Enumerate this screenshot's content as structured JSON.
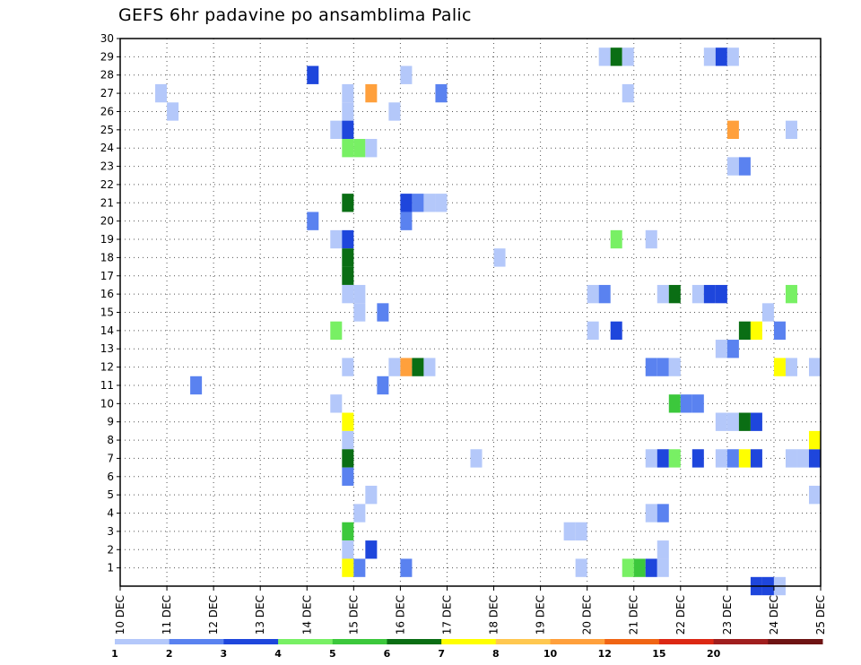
{
  "title": "GEFS 6hr padavine po ansamblima Palic",
  "chart_data": {
    "type": "heatmap",
    "title": "GEFS 6hr padavine po ansamblima Palic",
    "x_tick_labels": [
      "10 DEC",
      "11 DEC",
      "12 DEC",
      "13 DEC",
      "14 DEC",
      "15 DEC",
      "16 DEC",
      "17 DEC",
      "18 DEC",
      "19 DEC",
      "20 DEC",
      "21 DEC",
      "22 DEC",
      "23 DEC",
      "24 DEC",
      "25 DEC"
    ],
    "y_tick_labels": [
      1,
      2,
      3,
      4,
      5,
      6,
      7,
      8,
      9,
      10,
      11,
      12,
      13,
      14,
      15,
      16,
      17,
      18,
      19,
      20,
      21,
      22,
      23,
      24,
      25,
      26,
      27,
      28,
      29,
      30
    ],
    "x_range_days": [
      10,
      25
    ],
    "y_range": [
      0,
      30
    ],
    "time_step_hours": 6,
    "grid": true,
    "colorbar": {
      "levels": [
        1,
        2,
        3,
        4,
        5,
        6,
        7,
        8,
        10,
        12,
        15,
        20
      ],
      "colors": [
        "#b4c8fa",
        "#5a82f0",
        "#1e46dc",
        "#78f064",
        "#3cc83c",
        "#0a6e14",
        "#ffff00",
        "#ffc850",
        "#ffa03c",
        "#f06414",
        "#dc2814",
        "#a01e1e",
        "#6e1414"
      ]
    },
    "cells": [
      {
        "x": "14.00",
        "y": 28,
        "c": 2
      },
      {
        "x": "14.75",
        "y": 27,
        "c": 0
      },
      {
        "x": "14.75",
        "y": 26,
        "c": 0
      },
      {
        "x": "14.50",
        "y": 25,
        "c": 0
      },
      {
        "x": "14.75",
        "y": 25,
        "c": 2
      },
      {
        "x": "14.75",
        "y": 24,
        "c": 3
      },
      {
        "x": "15.00",
        "y": 24,
        "c": 3
      },
      {
        "x": "15.25",
        "y": 24,
        "c": 0
      },
      {
        "x": "14.00",
        "y": 20,
        "c": 1
      },
      {
        "x": "14.75",
        "y": 21,
        "c": 5
      },
      {
        "x": "14.50",
        "y": 19,
        "c": 0
      },
      {
        "x": "14.75",
        "y": 19,
        "c": 2
      },
      {
        "x": "14.75",
        "y": 18,
        "c": 5
      },
      {
        "x": "14.75",
        "y": 17,
        "c": 5
      },
      {
        "x": "14.75",
        "y": 16,
        "c": 0
      },
      {
        "x": "15.00",
        "y": 16,
        "c": 0
      },
      {
        "x": "15.00",
        "y": 15,
        "c": 0
      },
      {
        "x": "14.50",
        "y": 14,
        "c": 3
      },
      {
        "x": "14.75",
        "y": 12,
        "c": 0
      },
      {
        "x": "14.50",
        "y": 10,
        "c": 0
      },
      {
        "x": "14.75",
        "y": 9,
        "c": 6
      },
      {
        "x": "14.75",
        "y": 8,
        "c": 0
      },
      {
        "x": "14.75",
        "y": 7,
        "c": 5
      },
      {
        "x": "14.75",
        "y": 6,
        "c": 1
      },
      {
        "x": "14.75",
        "y": 3,
        "c": 4
      },
      {
        "x": "14.75",
        "y": 2,
        "c": 0
      },
      {
        "x": "14.75",
        "y": 1,
        "c": 6
      },
      {
        "x": "15.00",
        "y": 1,
        "c": 1
      },
      {
        "x": "15.25",
        "y": 2,
        "c": 2
      },
      {
        "x": "15.00",
        "y": 4,
        "c": 0
      },
      {
        "x": "15.25",
        "y": 5,
        "c": 0
      },
      {
        "x": "15.25",
        "y": 27,
        "c": 8
      },
      {
        "x": "15.75",
        "y": 26,
        "c": 0
      },
      {
        "x": "15.50",
        "y": 15,
        "c": 1
      },
      {
        "x": "15.50",
        "y": 11,
        "c": 1
      },
      {
        "x": "15.75",
        "y": 12,
        "c": 0
      },
      {
        "x": "16.00",
        "y": 12,
        "c": 8
      },
      {
        "x": "16.25",
        "y": 12,
        "c": 5
      },
      {
        "x": "16.50",
        "y": 12,
        "c": 0
      },
      {
        "x": "16.00",
        "y": 21,
        "c": 2
      },
      {
        "x": "16.00",
        "y": 20,
        "c": 1
      },
      {
        "x": "16.25",
        "y": 21,
        "c": 1
      },
      {
        "x": "16.50",
        "y": 21,
        "c": 0
      },
      {
        "x": "16.75",
        "y": 21,
        "c": 0
      },
      {
        "x": "16.00",
        "y": 28,
        "c": 0
      },
      {
        "x": "16.00",
        "y": 1,
        "c": 1
      },
      {
        "x": "16.75",
        "y": 27,
        "c": 1
      },
      {
        "x": "10.75",
        "y": 27,
        "c": 0
      },
      {
        "x": "11.00",
        "y": 26,
        "c": 0
      },
      {
        "x": "11.50",
        "y": 11,
        "c": 1
      },
      {
        "x": "17.50",
        "y": 7,
        "c": 0
      },
      {
        "x": "18.00",
        "y": 18,
        "c": 0
      },
      {
        "x": "19.50",
        "y": 3,
        "c": 0
      },
      {
        "x": "19.75",
        "y": 3,
        "c": 0
      },
      {
        "x": "19.75",
        "y": 1,
        "c": 0
      },
      {
        "x": "20.00",
        "y": 16,
        "c": 0
      },
      {
        "x": "20.00",
        "y": 14,
        "c": 0
      },
      {
        "x": "20.25",
        "y": 16,
        "c": 1
      },
      {
        "x": "20.25",
        "y": 29,
        "c": 0
      },
      {
        "x": "20.50",
        "y": 29,
        "c": 5
      },
      {
        "x": "20.75",
        "y": 29,
        "c": 0
      },
      {
        "x": "20.50",
        "y": 19,
        "c": 3
      },
      {
        "x": "20.50",
        "y": 14,
        "c": 2
      },
      {
        "x": "20.75",
        "y": 27,
        "c": 0
      },
      {
        "x": "20.75",
        "y": 1,
        "c": 3
      },
      {
        "x": "21.00",
        "y": 1,
        "c": 4
      },
      {
        "x": "21.25",
        "y": 1,
        "c": 2
      },
      {
        "x": "21.50",
        "y": 1,
        "c": 0
      },
      {
        "x": "21.25",
        "y": 19,
        "c": 0
      },
      {
        "x": "21.25",
        "y": 12,
        "c": 1
      },
      {
        "x": "21.50",
        "y": 12,
        "c": 1
      },
      {
        "x": "21.75",
        "y": 12,
        "c": 0
      },
      {
        "x": "21.25",
        "y": 7,
        "c": 0
      },
      {
        "x": "21.50",
        "y": 7,
        "c": 2
      },
      {
        "x": "21.75",
        "y": 7,
        "c": 3
      },
      {
        "x": "21.25",
        "y": 4,
        "c": 0
      },
      {
        "x": "21.50",
        "y": 4,
        "c": 1
      },
      {
        "x": "21.50",
        "y": 2,
        "c": 0
      },
      {
        "x": "21.50",
        "y": 16,
        "c": 0
      },
      {
        "x": "21.75",
        "y": 16,
        "c": 5
      },
      {
        "x": "21.75",
        "y": 10,
        "c": 4
      },
      {
        "x": "22.00",
        "y": 10,
        "c": 1
      },
      {
        "x": "22.25",
        "y": 10,
        "c": 1
      },
      {
        "x": "22.25",
        "y": 16,
        "c": 0
      },
      {
        "x": "22.50",
        "y": 16,
        "c": 2
      },
      {
        "x": "22.75",
        "y": 16,
        "c": 2
      },
      {
        "x": "22.25",
        "y": 7,
        "c": 2
      },
      {
        "x": "22.50",
        "y": 29,
        "c": 0
      },
      {
        "x": "22.75",
        "y": 29,
        "c": 2
      },
      {
        "x": "23.00",
        "y": 29,
        "c": 0
      },
      {
        "x": "22.75",
        "y": 13,
        "c": 0
      },
      {
        "x": "23.00",
        "y": 13,
        "c": 1
      },
      {
        "x": "22.75",
        "y": 9,
        "c": 0
      },
      {
        "x": "23.00",
        "y": 9,
        "c": 0
      },
      {
        "x": "23.25",
        "y": 9,
        "c": 5
      },
      {
        "x": "23.50",
        "y": 9,
        "c": 2
      },
      {
        "x": "22.75",
        "y": 7,
        "c": 0
      },
      {
        "x": "23.00",
        "y": 7,
        "c": 1
      },
      {
        "x": "23.25",
        "y": 7,
        "c": 6
      },
      {
        "x": "23.50",
        "y": 7,
        "c": 2
      },
      {
        "x": "23.00",
        "y": 25,
        "c": 8
      },
      {
        "x": "23.00",
        "y": 23,
        "c": 0
      },
      {
        "x": "23.25",
        "y": 23,
        "c": 1
      },
      {
        "x": "23.25",
        "y": 14,
        "c": 5
      },
      {
        "x": "23.50",
        "y": 14,
        "c": 6
      },
      {
        "x": "23.75",
        "y": 15,
        "c": 0
      },
      {
        "x": "24.00",
        "y": 14,
        "c": 1
      },
      {
        "x": "23.50",
        "y": 0,
        "c": 2
      },
      {
        "x": "23.75",
        "y": 0,
        "c": 2
      },
      {
        "x": "24.00",
        "y": 0,
        "c": 0
      },
      {
        "x": "24.00",
        "y": 12,
        "c": 6
      },
      {
        "x": "24.25",
        "y": 12,
        "c": 0
      },
      {
        "x": "24.75",
        "y": 12,
        "c": 0
      },
      {
        "x": "24.25",
        "y": 25,
        "c": 0
      },
      {
        "x": "24.25",
        "y": 16,
        "c": 3
      },
      {
        "x": "24.25",
        "y": 7,
        "c": 0
      },
      {
        "x": "24.50",
        "y": 7,
        "c": 0
      },
      {
        "x": "24.75",
        "y": 7,
        "c": 2
      },
      {
        "x": "24.75",
        "y": 8,
        "c": 6
      },
      {
        "x": "24.75",
        "y": 5,
        "c": 0
      }
    ]
  }
}
